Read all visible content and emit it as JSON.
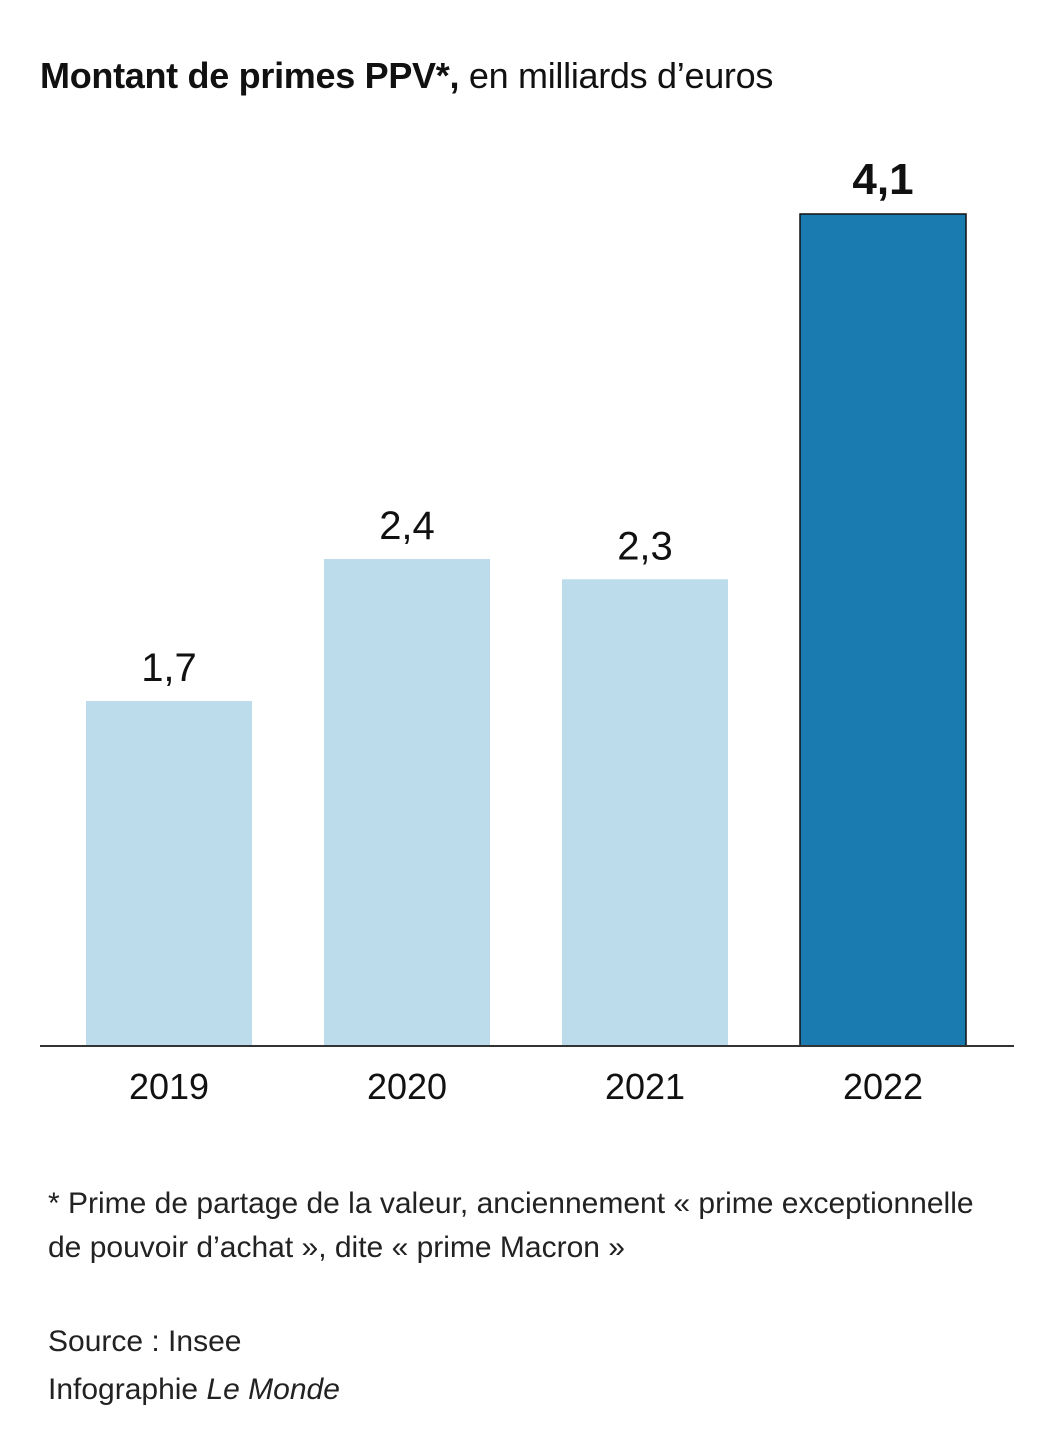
{
  "title": {
    "bold": "Montant de primes PPV*,",
    "light": " en milliards d’euros"
  },
  "chart_data": {
    "type": "bar",
    "title": "Montant de primes PPV*, en milliards d’euros",
    "categories": [
      "2019",
      "2020",
      "2021",
      "2022"
    ],
    "values": [
      1.7,
      2.4,
      2.3,
      4.1
    ],
    "value_labels": [
      "1,7",
      "2,4",
      "2,3",
      "4,1"
    ],
    "highlight_index": 3,
    "ylim": [
      0,
      4.1
    ],
    "grid": false,
    "legend": "none",
    "colors": {
      "bar": "#bcdcec",
      "highlight": "#1a7bb0",
      "highlight_stroke": "#111111",
      "baseline": "#333333"
    }
  },
  "footnote": "* Prime de partage de la valeur, anciennement « prime exceptionnelle de pouvoir d’achat », dite « prime Macron »",
  "source": {
    "label": "Source : Insee",
    "credit_prefix": "Infographie ",
    "credit_name": "Le Monde"
  }
}
